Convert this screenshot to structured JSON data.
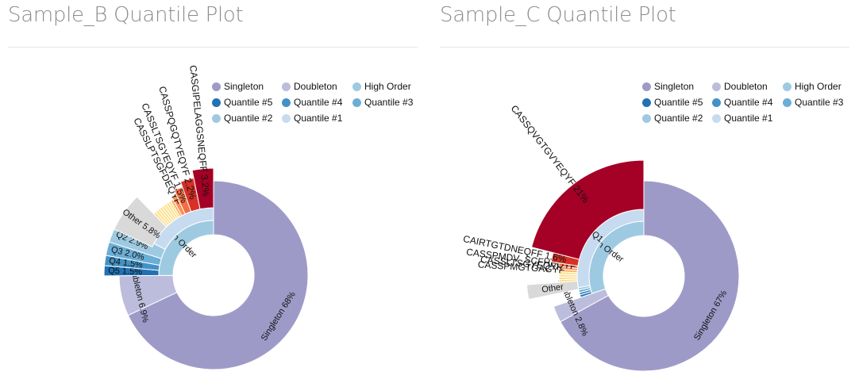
{
  "legend": [
    {
      "label": "Singleton",
      "color": "#9e9ac8"
    },
    {
      "label": "Doubleton",
      "color": "#bcbddc"
    },
    {
      "label": "High Order",
      "color": "#9ecae1"
    },
    {
      "label": "Quantile #5",
      "color": "#2171b5"
    },
    {
      "label": "Quantile #4",
      "color": "#4292c6"
    },
    {
      "label": "Quantile #3",
      "color": "#6baed6"
    },
    {
      "label": "Quantile #2",
      "color": "#9ecae1"
    },
    {
      "label": "Quantile #1",
      "color": "#c6dbef"
    }
  ],
  "colors": {
    "singleton": "#9e9ac8",
    "doubleton": "#bcbddc",
    "high_order": "#9ecae1",
    "q5": "#2171b5",
    "q4": "#4292c6",
    "q3": "#6baed6",
    "q2": "#9ecae1",
    "q1": "#c6dbef",
    "other": "#d9d9d9",
    "clone_shades": [
      "#a50026",
      "#d73027",
      "#f46d43",
      "#fc8d59",
      "#fdae61",
      "#fee090"
    ]
  },
  "chart_data": [
    {
      "type": "pie",
      "title": "Sample_B Quantile Plot",
      "inner_ring": [
        {
          "label": "Singleton 68%",
          "name": "Singleton",
          "value": 68,
          "color": "#9e9ac8"
        },
        {
          "label": "Doubleton 6.9%",
          "name": "Doubleton",
          "value": 6.9,
          "color": "#bcbddc"
        },
        {
          "label": "High Order",
          "name": "High Order",
          "value": 25.1,
          "color": "#9ecae1"
        }
      ],
      "quantile_ring": [
        {
          "label": "Q5 1.5%",
          "value": 1.5,
          "color": "#2171b5"
        },
        {
          "label": "Q4 1.5%",
          "value": 1.5,
          "color": "#4292c6"
        },
        {
          "label": "Q3 2.0%",
          "value": 2.0,
          "color": "#6baed6"
        },
        {
          "label": "Q2 2.9%",
          "value": 2.9,
          "color": "#9ecae1"
        },
        {
          "label": "",
          "value": 17.2,
          "color": "#c6dbef"
        }
      ],
      "clones": [
        {
          "label": "Other 5.8%",
          "value": 5.8,
          "color": "#d9d9d9"
        },
        {
          "label": "",
          "value": 0.5
        },
        {
          "label": "",
          "value": 0.5
        },
        {
          "label": "",
          "value": 0.5
        },
        {
          "label": "",
          "value": 0.5
        },
        {
          "label": "",
          "value": 0.5
        },
        {
          "label": "",
          "value": 0.5
        },
        {
          "label": "",
          "value": 0.5
        },
        {
          "label": "",
          "value": 0.5
        },
        {
          "label": "",
          "value": 0.5
        },
        {
          "label": "CASSLPTSGFDEQYF",
          "value": 0.9
        },
        {
          "label": "CASSLTSGYEQYF 1.5%",
          "value": 1.5
        },
        {
          "label": "CASSPQGQTYEQYF 2.2%",
          "value": 2.2
        },
        {
          "label": "CASGIPELAGGSNEQFF 3.2%",
          "value": 3.2
        }
      ]
    },
    {
      "type": "pie",
      "title": "Sample_C Quantile Plot",
      "inner_ring": [
        {
          "label": "Singleton 67%",
          "name": "Singleton",
          "value": 67,
          "color": "#9e9ac8"
        },
        {
          "label": "Doubleton 2.8%",
          "name": "Doubleton",
          "value": 2.8,
          "color": "#bcbddc"
        },
        {
          "label": "High Order",
          "name": "High Order",
          "value": 30.2,
          "color": "#9ecae1"
        }
      ],
      "quantile_ring": [
        {
          "label": "",
          "value": 0.6,
          "color": "#2171b5"
        },
        {
          "label": "",
          "value": 0.6,
          "color": "#4292c6"
        },
        {
          "label": "",
          "value": 0.6,
          "color": "#6baed6"
        },
        {
          "label": "",
          "value": 0.6,
          "color": "#9ecae1"
        },
        {
          "label": "Q1",
          "value": 27.8,
          "color": "#c6dbef"
        }
      ],
      "clones": [
        {
          "label": "Other",
          "value": 2.0,
          "color": "#d9d9d9"
        },
        {
          "label": "",
          "value": 0.5
        },
        {
          "label": "",
          "value": 0.5
        },
        {
          "label": "",
          "value": 0.5
        },
        {
          "label": "",
          "value": 0.5
        },
        {
          "label": "CASSPMGTGAGYF",
          "value": 0.5
        },
        {
          "label": "CASSLTSGYEQYF",
          "value": 0.5
        },
        {
          "label": "CASSPMDV_SCFHEQYF",
          "value": 0.6
        },
        {
          "label": "CAIRTGTDNEQFF 1.6%",
          "value": 1.6
        },
        {
          "label": "CASSQVGTGVYEQYF 21%",
          "value": 21
        }
      ]
    }
  ]
}
